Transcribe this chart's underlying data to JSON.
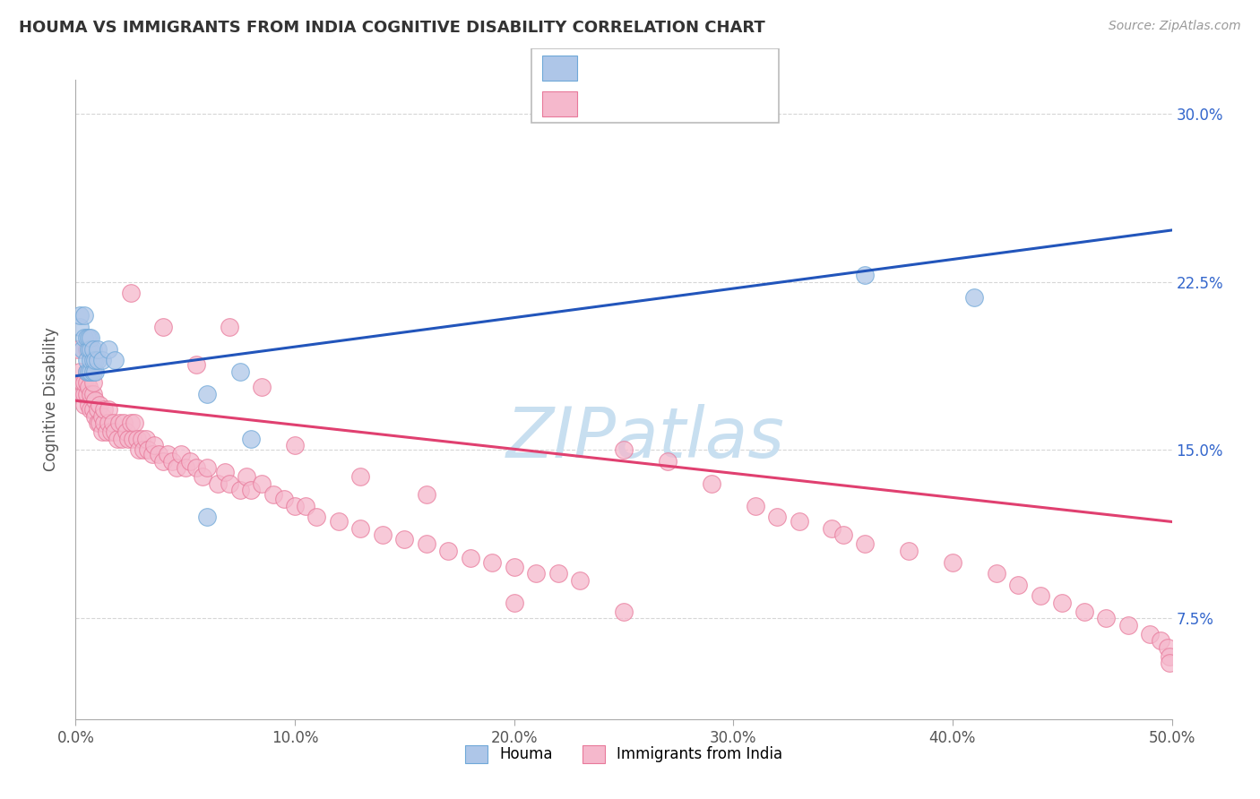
{
  "title": "HOUMA VS IMMIGRANTS FROM INDIA COGNITIVE DISABILITY CORRELATION CHART",
  "source": "Source: ZipAtlas.com",
  "ylabel_label": "Cognitive Disability",
  "xlim": [
    0.0,
    0.5
  ],
  "ylim": [
    0.03,
    0.315
  ],
  "houma_color": "#aec6e8",
  "india_color": "#f5b8cc",
  "houma_edge": "#6fa8d8",
  "india_edge": "#e8799a",
  "line_blue": "#2255bb",
  "line_pink": "#e04070",
  "watermark_color": "#c8dff0",
  "houma_x": [
    0.002,
    0.002,
    0.003,
    0.004,
    0.004,
    0.005,
    0.005,
    0.005,
    0.006,
    0.006,
    0.006,
    0.007,
    0.007,
    0.007,
    0.007,
    0.008,
    0.008,
    0.008,
    0.009,
    0.009,
    0.01,
    0.01,
    0.012,
    0.015,
    0.018,
    0.06,
    0.075,
    0.08,
    0.36,
    0.41,
    0.06
  ],
  "houma_y": [
    0.205,
    0.21,
    0.195,
    0.2,
    0.21,
    0.185,
    0.19,
    0.2,
    0.185,
    0.195,
    0.2,
    0.185,
    0.19,
    0.195,
    0.2,
    0.185,
    0.19,
    0.195,
    0.185,
    0.19,
    0.19,
    0.195,
    0.19,
    0.195,
    0.19,
    0.175,
    0.185,
    0.155,
    0.228,
    0.218,
    0.12
  ],
  "india_x": [
    0.001,
    0.002,
    0.003,
    0.003,
    0.004,
    0.004,
    0.004,
    0.005,
    0.005,
    0.005,
    0.005,
    0.006,
    0.006,
    0.006,
    0.007,
    0.007,
    0.008,
    0.008,
    0.008,
    0.009,
    0.009,
    0.01,
    0.01,
    0.011,
    0.011,
    0.012,
    0.012,
    0.013,
    0.013,
    0.014,
    0.015,
    0.015,
    0.016,
    0.017,
    0.018,
    0.019,
    0.02,
    0.021,
    0.022,
    0.023,
    0.024,
    0.025,
    0.026,
    0.027,
    0.028,
    0.029,
    0.03,
    0.031,
    0.032,
    0.033,
    0.035,
    0.036,
    0.038,
    0.04,
    0.042,
    0.044,
    0.046,
    0.048,
    0.05,
    0.052,
    0.055,
    0.058,
    0.06,
    0.065,
    0.068,
    0.07,
    0.075,
    0.078,
    0.08,
    0.085,
    0.09,
    0.095,
    0.1,
    0.105,
    0.11,
    0.12,
    0.13,
    0.14,
    0.15,
    0.16,
    0.17,
    0.18,
    0.19,
    0.2,
    0.21,
    0.22,
    0.23,
    0.25,
    0.27,
    0.29,
    0.31,
    0.32,
    0.33,
    0.345,
    0.35,
    0.36,
    0.38,
    0.4,
    0.42,
    0.43,
    0.44,
    0.45,
    0.46,
    0.47,
    0.48,
    0.49,
    0.495,
    0.498,
    0.499,
    0.499,
    0.025,
    0.04,
    0.055,
    0.07,
    0.085,
    0.1,
    0.13,
    0.16,
    0.2,
    0.25
  ],
  "india_y": [
    0.195,
    0.185,
    0.175,
    0.18,
    0.17,
    0.175,
    0.18,
    0.175,
    0.18,
    0.185,
    0.195,
    0.17,
    0.178,
    0.185,
    0.168,
    0.175,
    0.168,
    0.175,
    0.18,
    0.165,
    0.172,
    0.162,
    0.168,
    0.162,
    0.17,
    0.158,
    0.165,
    0.162,
    0.168,
    0.158,
    0.162,
    0.168,
    0.158,
    0.162,
    0.158,
    0.155,
    0.162,
    0.155,
    0.162,
    0.158,
    0.155,
    0.162,
    0.155,
    0.162,
    0.155,
    0.15,
    0.155,
    0.15,
    0.155,
    0.15,
    0.148,
    0.152,
    0.148,
    0.145,
    0.148,
    0.145,
    0.142,
    0.148,
    0.142,
    0.145,
    0.142,
    0.138,
    0.142,
    0.135,
    0.14,
    0.135,
    0.132,
    0.138,
    0.132,
    0.135,
    0.13,
    0.128,
    0.125,
    0.125,
    0.12,
    0.118,
    0.115,
    0.112,
    0.11,
    0.108,
    0.105,
    0.102,
    0.1,
    0.098,
    0.095,
    0.095,
    0.092,
    0.15,
    0.145,
    0.135,
    0.125,
    0.12,
    0.118,
    0.115,
    0.112,
    0.108,
    0.105,
    0.1,
    0.095,
    0.09,
    0.085,
    0.082,
    0.078,
    0.075,
    0.072,
    0.068,
    0.065,
    0.062,
    0.058,
    0.055,
    0.22,
    0.205,
    0.188,
    0.205,
    0.178,
    0.152,
    0.138,
    0.13,
    0.082,
    0.078
  ]
}
